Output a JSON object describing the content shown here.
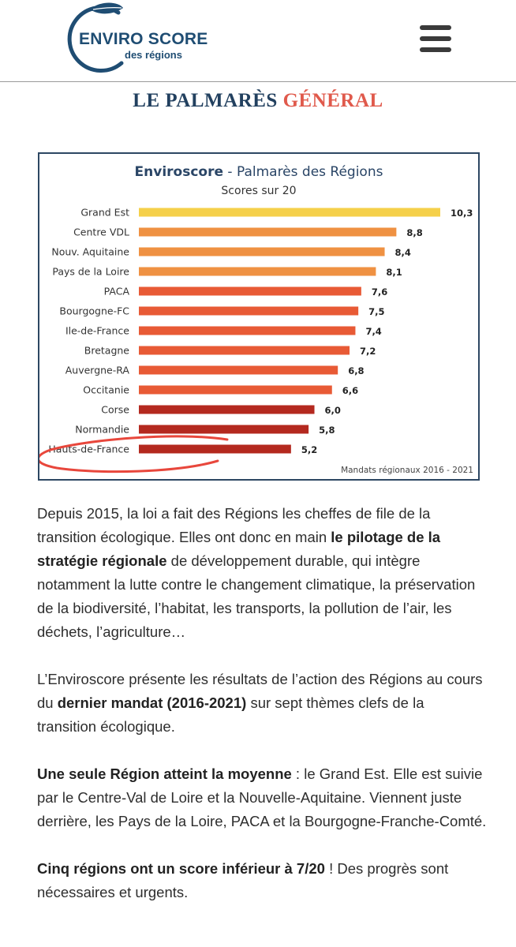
{
  "header": {
    "logo_title": "ENVIRO SCORE",
    "logo_subtitle": "des régions",
    "menu_icon": "hamburger-menu-icon"
  },
  "section_title": {
    "part1": "LE PALMARÈS",
    "part2": "GÉNÉRAL",
    "color1": "#22405f",
    "color2": "#e05a4c"
  },
  "chart_data": {
    "type": "bar",
    "orientation": "horizontal",
    "title_brand": "Enviroscore",
    "title_rest": " - Palmarès des Régions",
    "subtitle": "Scores sur 20",
    "footnote": "Mandats régionaux 2016 - 2021",
    "categories": [
      "Grand Est",
      "Centre VDL",
      "Nouv. Aquitaine",
      "Pays de la Loire",
      "PACA",
      "Bourgogne-FC",
      "Ile-de-France",
      "Bretagne",
      "Auvergne-RA",
      "Occitanie",
      "Corse",
      "Normandie",
      "Hauts-de-France"
    ],
    "values": [
      10.3,
      8.8,
      8.4,
      8.1,
      7.6,
      7.5,
      7.4,
      7.2,
      6.8,
      6.6,
      6.0,
      5.8,
      5.2
    ],
    "value_labels": [
      "10,3",
      "8,8",
      "8,4",
      "8,1",
      "7,6",
      "7,5",
      "7,4",
      "7,2",
      "6,8",
      "6,6",
      "6,0",
      "5,8",
      "5,2"
    ],
    "colors": [
      "#f5d04a",
      "#ef9142",
      "#ef9142",
      "#ef9142",
      "#e85a35",
      "#e85a35",
      "#e85a35",
      "#e85a35",
      "#e85a35",
      "#e85a35",
      "#b4291f",
      "#b4291f",
      "#b4291f"
    ],
    "annotation": "red hand-drawn ellipse around Hauts-de-France",
    "annotation_color": "#e8473c",
    "xlim": [
      0,
      10.3
    ]
  },
  "paragraphs": [
    {
      "segments": [
        {
          "text": "Depuis 2015, la loi a fait des Régions les cheffes de file de la transition écologique. Elles ont donc en main ",
          "bold": false
        },
        {
          "text": "le pilotage de la stratégie régionale",
          "bold": true
        },
        {
          "text": " de développement durable, qui intègre notamment la lutte contre le changement climatique, la préservation de la biodiversité, l’habitat, les transports, la pollution de l’air, les déchets, l’agriculture…",
          "bold": false
        }
      ]
    },
    {
      "segments": [
        {
          "text": "L’Enviroscore présente les résultats de l’action des Régions au cours du ",
          "bold": false
        },
        {
          "text": "dernier mandat (2016-2021)",
          "bold": true
        },
        {
          "text": " sur sept thèmes clefs de la transition écologique.",
          "bold": false
        }
      ]
    },
    {
      "segments": [
        {
          "text": "Une seule Région atteint la moyenne",
          "bold": true
        },
        {
          "text": " : le Grand Est. Elle est suivie par le Centre-Val de Loire et la Nouvelle-Aquitaine. Viennent juste derrière, les Pays de la Loire, PACA et la Bourgogne-Franche-Comté.",
          "bold": false
        }
      ]
    },
    {
      "segments": [
        {
          "text": "Cinq régions ont un score inférieur à 7/20",
          "bold": true
        },
        {
          "text": " ! Des progrès sont nécessaires et urgents.",
          "bold": false
        }
      ]
    }
  ]
}
